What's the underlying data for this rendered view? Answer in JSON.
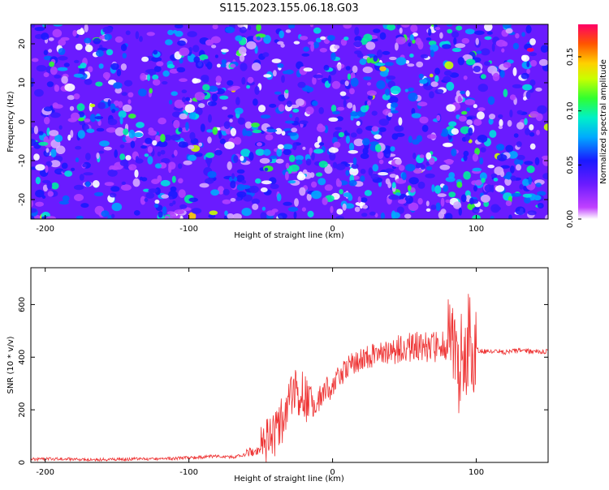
{
  "figure_title": "S115.2023.155.06.18.G03",
  "chart_data": [
    {
      "type": "heatmap",
      "title": "",
      "xlabel": "Height of straight line (km)",
      "ylabel": "Frequency (Hz)",
      "xlim": [
        -210,
        150
      ],
      "ylim": [
        -25,
        25
      ],
      "x_ticks": [
        -200,
        -100,
        0,
        100
      ],
      "y_ticks": [
        -20,
        -10,
        0,
        10,
        20
      ],
      "colorbar": {
        "label": "Normalized spectral amplitude",
        "range": [
          0,
          0.18
        ],
        "ticks": [
          "0.00",
          "0.05",
          "0.10",
          "0.15"
        ]
      },
      "description_of_values": "noise-like field, mostly 0.03-0.06 with scattered peaks up to ~0.17",
      "grid": false
    },
    {
      "type": "line",
      "title": "",
      "xlabel": "Height of straight line (km)",
      "ylabel": "SNR (10 * v/v)",
      "xlim": [
        -210,
        150
      ],
      "ylim": [
        0,
        740
      ],
      "x_ticks": [
        -200,
        -100,
        0,
        100
      ],
      "y_ticks": [
        0,
        200,
        400,
        600
      ],
      "grid": false,
      "series": [
        {
          "color": "#ee3333",
          "x": [
            -210,
            -190,
            -170,
            -150,
            -130,
            -110,
            -100,
            -90,
            -80,
            -70,
            -60,
            -50,
            -45,
            -40,
            -35,
            -30,
            -25,
            -20,
            -15,
            -10,
            -5,
            0,
            5,
            10,
            15,
            20,
            25,
            30,
            35,
            40,
            45,
            50,
            55,
            60,
            65,
            70,
            75,
            80,
            85,
            88,
            90,
            92,
            95,
            98,
            100,
            105,
            110,
            120,
            130,
            140,
            150
          ],
          "values": [
            12,
            14,
            10,
            12,
            13,
            15,
            18,
            20,
            25,
            20,
            30,
            50,
            80,
            110,
            160,
            230,
            270,
            260,
            200,
            230,
            270,
            300,
            330,
            360,
            380,
            390,
            400,
            410,
            415,
            420,
            430,
            440,
            430,
            445,
            440,
            435,
            440,
            450,
            470,
            350,
            420,
            330,
            500,
            380,
            430,
            420,
            425,
            420,
            425,
            422,
            420
          ]
        }
      ]
    }
  ]
}
